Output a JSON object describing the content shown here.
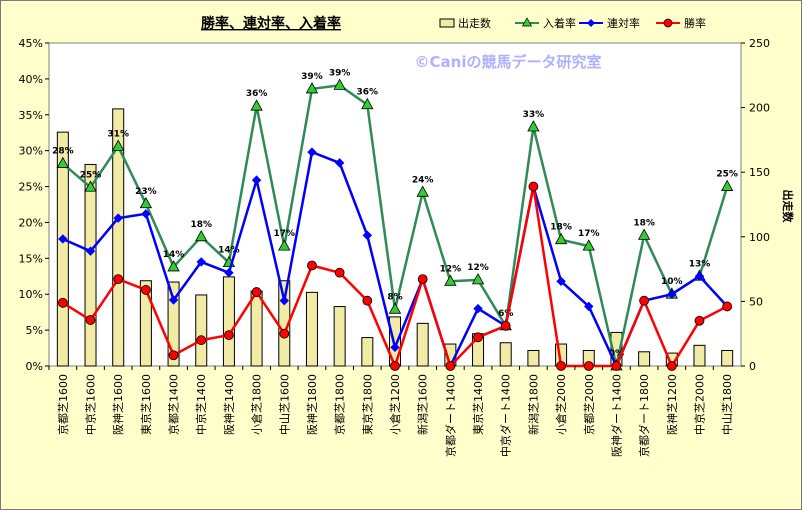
{
  "chart_data": {
    "type": "bar+line",
    "title": "勝率、連対率、入着率",
    "watermark": "©Caniの競馬データ研究室",
    "y_left_ticks": [
      "0%",
      "5%",
      "10%",
      "15%",
      "20%",
      "25%",
      "30%",
      "35%",
      "40%",
      "45%"
    ],
    "y_left_range": [
      0,
      45
    ],
    "y_right_ticks": [
      "0",
      "50",
      "100",
      "150",
      "200",
      "250"
    ],
    "y_right_range": [
      0,
      250
    ],
    "y_right_label": "出走数",
    "grid": false,
    "legend_position": "top-right",
    "categories": [
      "京都芝1600",
      "中京芝1600",
      "阪神芝1600",
      "東京芝1600",
      "京都芝1400",
      "中京芝1400",
      "阪神芝1400",
      "小倉芝1800",
      "中山芝1600",
      "阪神芝1800",
      "京都芝1800",
      "東京芝1800",
      "小倉芝1200",
      "新潟芝1600",
      "京都ダート1400",
      "東京芝1400",
      "中京ダート1400",
      "新潟芝1800",
      "小倉芝2000",
      "京都芝2000",
      "阪神ダート1400",
      "京都ダート1800",
      "阪神芝1200",
      "中京芝2000",
      "中山芝1800"
    ],
    "series": [
      {
        "name": "出走数",
        "type": "bar",
        "axis": "right",
        "color": "#f2eba6",
        "values": [
          181,
          156,
          199,
          66,
          65,
          55,
          69,
          58,
          66,
          57,
          46,
          22,
          38,
          33,
          17,
          25,
          18,
          12,
          17,
          12,
          26,
          11,
          10,
          16,
          12
        ]
      },
      {
        "name": "入着率",
        "type": "line",
        "axis": "left",
        "color": "#2e8b57",
        "marker": "triangle",
        "marker_color": "#33cc33",
        "values": [
          28.2,
          24.9,
          30.6,
          22.6,
          13.8,
          18.0,
          14.4,
          36.2,
          16.7,
          38.6,
          39.1,
          36.4,
          7.9,
          24.2,
          11.8,
          12.0,
          5.6,
          33.3,
          17.6,
          16.7,
          0.0,
          18.2,
          10.0,
          12.5,
          25.0
        ],
        "labels": [
          "28%",
          "25%",
          "31%",
          "23%",
          "14%",
          "18%",
          "14%",
          "36%",
          "17%",
          "39%",
          "39%",
          "36%",
          "8%",
          "24%",
          "12%",
          "12%",
          "6%",
          "33%",
          "18%",
          "17%",
          "0%",
          "18%",
          "10%",
          "13%",
          "25%"
        ]
      },
      {
        "name": "連対率",
        "type": "line",
        "axis": "left",
        "color": "#0000ff",
        "marker": "diamond",
        "values": [
          17.7,
          16.0,
          20.6,
          21.2,
          9.2,
          14.5,
          13.0,
          25.9,
          9.1,
          29.8,
          28.3,
          18.2,
          2.6,
          12.1,
          0.0,
          8.0,
          5.6,
          25.0,
          11.8,
          8.3,
          0.0,
          9.1,
          10.0,
          12.5,
          8.3
        ]
      },
      {
        "name": "勝率",
        "type": "line",
        "axis": "left",
        "color": "#ff0000",
        "marker": "circle",
        "values": [
          8.8,
          6.4,
          12.1,
          10.6,
          1.5,
          3.6,
          4.3,
          10.3,
          4.5,
          14.0,
          13.0,
          9.1,
          0.0,
          12.1,
          0.0,
          4.0,
          5.6,
          25.0,
          0.0,
          0.0,
          0.0,
          9.1,
          0.0,
          6.3,
          8.3
        ]
      }
    ],
    "legend": [
      "出走数",
      "入着率",
      "連対率",
      "勝率"
    ]
  }
}
